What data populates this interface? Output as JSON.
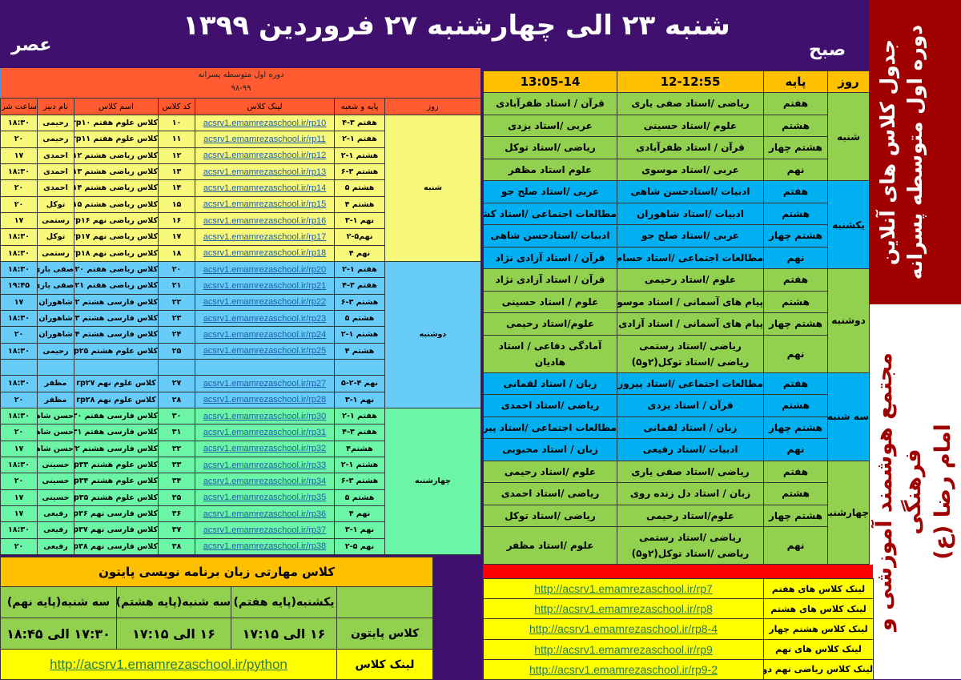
{
  "header": {
    "title": "شنبه ۲۳ الی چهارشنبه ۲۷ فروردین ۱۳۹۹",
    "afternoon": "عصر",
    "morning": "صبح"
  },
  "side": {
    "line1": "جدول کلاس های آنلاین",
    "line2": "دوره اول متوسطه پسرانه",
    "school1": "مجتمع هوشمند آموزشی و فرهنگی",
    "school2": "امام رضا (ع)"
  },
  "colors": {
    "purple": "#40106e",
    "dark_red": "#a00000",
    "orange_red": "#ff5a30",
    "green": "#92d050",
    "blue": "#00b0f0",
    "yellow": "#ffff00"
  },
  "evening": {
    "title": "دوره اول متوسطه پسرانه",
    "year": "۹۸-۹۹",
    "columns": [
      "روز",
      "پایه و شعبه",
      "لینک کلاس",
      "کد کلاس",
      "اسم کلاس",
      "نام دبیر",
      "ساعت شروع کلاس"
    ],
    "days": [
      {
        "day": "شنبه",
        "cls": "c-sat",
        "rows": [
          [
            "هفتم ۳-۴",
            "acsrv1.emamrezaschool.ir/rp10",
            "۱۰",
            "کلاس علوم هفتم rp۱۰",
            "رحیمی",
            "۱۸:۳۰"
          ],
          [
            "هفتم ۱-۲",
            "acsrv1.emamrezaschool.ir/rp11",
            "۱۱",
            "کلاس علوم هفتم rp۱۱",
            "رحیمی",
            "۲۰"
          ],
          [
            "هشتم ۱-۲",
            "acsrv1.emamrezaschool.ir/rp12",
            "۱۲",
            "کلاس ریاضی هشتم rp۱۲",
            "احمدی",
            "۱۷"
          ],
          [
            "هشتم ۳-۶",
            "acsrv1.emamrezaschool.ir/rp13",
            "۱۳",
            "کلاس ریاضی هشتم rp۱۳",
            "احمدی",
            "۱۸:۳۰"
          ],
          [
            "هشتم ۵",
            "acsrv1.emamrezaschool.ir/rp14",
            "۱۴",
            "کلاس ریاضی هشتم rp۱۴",
            "احمدی",
            "۲۰"
          ],
          [
            "هشتم ۴",
            "acsrv1.emamrezaschool.ir/rp15",
            "۱۵",
            "کلاس ریاضی هشتم rp۱۵",
            "توکل",
            "۲۰"
          ],
          [
            "نهم ۱-۳",
            "acsrv1.emamrezaschool.ir/rp16",
            "۱۶",
            "کلاس ریاضی نهم rp۱۶",
            "رستمی",
            "۱۷"
          ],
          [
            "نهم۵-۲",
            "acsrv1.emamrezaschool.ir/rp17",
            "۱۷",
            "کلاس ریاضی نهم rp۱۷",
            "توکل",
            "۱۸:۳۰"
          ],
          [
            "نهم ۴",
            "acsrv1.emamrezaschool.ir/rp18",
            "۱۸",
            "کلاس ریاضی نهم rp۱۸",
            "رستمی",
            "۱۸:۳۰"
          ]
        ]
      },
      {
        "day": "دوشنبه",
        "cls": "c-mon",
        "rows": [
          [
            "هفتم ۱-۲",
            "acsrv1.emamrezaschool.ir/rp20",
            "۲۰",
            "کلاس ریاضی هفتم rp۲۰",
            "صفی یاری",
            "۱۸:۳۰"
          ],
          [
            "هفتم ۳-۴",
            "acsrv1.emamrezaschool.ir/rp21",
            "۲۱",
            "کلاس ریاضی هفتم rp۲۱",
            "صفی یاری",
            "۱۹:۴۵"
          ],
          [
            "هشتم ۳-۶",
            "acsrv1.emamrezaschool.ir/rp22",
            "۲۲",
            "کلاس فارسی هشتم rp۲۲",
            "شاهوران",
            "۱۷"
          ],
          [
            "هشتم ۵",
            "acsrv1.emamrezaschool.ir/rp23",
            "۲۳",
            "کلاس فارسی هشتم rp۲۳",
            "شاهوران",
            "۱۸:۳۰"
          ],
          [
            "هشتم ۱-۲",
            "acsrv1.emamrezaschool.ir/rp24",
            "۲۴",
            "کلاس فارسی هشتم rp۲۴",
            "شاهوران",
            "۲۰"
          ],
          [
            "هشتم ۴",
            "acsrv1.emamrezaschool.ir/rp25",
            "۲۵",
            "کلاس علوم هشتم rp۲۵",
            "رحیمی",
            "۱۸:۳۰"
          ],
          [
            "",
            "",
            "",
            "",
            "",
            ""
          ],
          [
            "نهم ۴-۲-۵",
            "acsrv1.emamrezaschool.ir/rp27",
            "۲۷",
            "کلاس علوم نهم rp۲۷",
            "مظفر",
            "۱۸:۳۰"
          ],
          [
            "نهم ۱-۳",
            "acsrv1.emamrezaschool.ir/rp28",
            "۲۸",
            "کلاس علوم نهم rp۲۸",
            "مظفر",
            "۲۰"
          ]
        ]
      },
      {
        "day": "چهارشنبه",
        "cls": "c-wed",
        "rows": [
          [
            "هفتم ۱-۲",
            "acsrv1.emamrezaschool.ir/rp30",
            "۳۰",
            "کلاس فارسی هفتم rp۳۰",
            "حسن شاهی",
            "۱۸:۳۰"
          ],
          [
            "هفتم ۳-۴",
            "acsrv1.emamrezaschool.ir/rp31",
            "۳۱",
            "کلاس فارسی هفتم rp۳۱",
            "حسن شاهی",
            "۲۰"
          ],
          [
            "هشتم۴",
            "acsrv1.emamrezaschool.ir/rp32",
            "۳۲",
            "کلاس فارسی هشتم rp۳۲",
            "حسن شاهی",
            "۱۷"
          ],
          [
            "هشتم ۱-۲",
            "acsrv1.emamrezaschool.ir/rp33",
            "۳۳",
            "کلاس علوم هشتم rp۳۳",
            "حسینی",
            "۱۸:۳۰"
          ],
          [
            "هشتم ۳-۶",
            "acsrv1.emamrezaschool.ir/rp34",
            "۳۴",
            "کلاس علوم هشتم rp۳۴",
            "حسینی",
            "۲۰"
          ],
          [
            "هشتم ۵",
            "acsrv1.emamrezaschool.ir/rp35",
            "۳۵",
            "کلاس علوم هشتم rp۳۵",
            "حسینی",
            "۱۷"
          ],
          [
            "نهم ۴",
            "acsrv1.emamrezaschool.ir/rp36",
            "۳۶",
            "کلاس فارسی نهم rp۳۶",
            "رفیعی",
            "۱۷"
          ],
          [
            "نهم ۱-۳",
            "acsrv1.emamrezaschool.ir/rp37",
            "۳۷",
            "کلاس فارسی نهم rp۳۷",
            "رفیعی",
            "۱۸:۳۰"
          ],
          [
            "نهم ۵-۲",
            "acsrv1.emamrezaschool.ir/rp38",
            "۳۸",
            "کلاس فارسی نهم rp۳۸",
            "رفیعی",
            "۲۰"
          ]
        ]
      }
    ]
  },
  "morning": {
    "columns": [
      "روز",
      "پایه",
      "12-12:55",
      "13:05-14"
    ],
    "days": [
      {
        "day": "شنبه",
        "cls": "g",
        "rows": [
          [
            "هفتم",
            "ریاضی /استاد صفی یاری",
            "قرآن / استاد ظفرآبادی"
          ],
          [
            "هشتم",
            "علوم /استاد حسینی",
            "عربی /استاد یزدی"
          ],
          [
            "هشتم چهار",
            "قرآن / استاد ظفرآبادی",
            "ریاضی /استاد توکل"
          ],
          [
            "نهم",
            "عربی /استاد موسوی",
            "علوم استاد مظفر"
          ]
        ]
      },
      {
        "day": "یکشنبه",
        "cls": "b",
        "rows": [
          [
            "هفتم",
            "ادبیات /استادحسن شاهی",
            "عربی /استاد صلح جو"
          ],
          [
            "هشتم",
            "ادبیات /استاد شاهوران",
            "مطالعات اجتماعی /استاد کشاورز"
          ],
          [
            "هشتم چهار",
            "عربی /استاد صلح جو",
            "ادبیات /استادحسن شاهی"
          ],
          [
            "نهم",
            "مطالعات اجتماعی /استاد حسام پور",
            "قرآن / استاد آزادی نژاد"
          ]
        ]
      },
      {
        "day": "دوشنبه",
        "cls": "g",
        "rows": [
          [
            "هفتم",
            "علوم /استاد رحیمی",
            "قرآن / استاد آزادی نژاد"
          ],
          [
            "هشتم",
            "پیام های آسمانی / استاد موسوی",
            "علوم / استاد حسینی"
          ],
          [
            "هشتم چهار",
            "پیام های آسمانی / استاد آزادی نژاد",
            "علوم/استاد رحیمی"
          ],
          [
            "نهم",
            "ریاضی /استاد رستمی\nریاضی /استاد توکل(۲و۵)",
            "آمادگی دفاعی / استاد هادیان"
          ]
        ]
      },
      {
        "day": "سه شنبه",
        "cls": "b",
        "rows": [
          [
            "هفتم",
            "مطالعات اجتماعی /استاد پیروزان",
            "زبان / استاد لقمانی"
          ],
          [
            "هشتم",
            "قرآن / استاد یزدی",
            "ریاضی /استاد احمدی"
          ],
          [
            "هشتم چهار",
            "زبان / استاد لقمانی",
            "مطالعات اجتماعی /استاد پیروزان"
          ],
          [
            "نهم",
            "ادبیات /استاد رفیعی",
            "زبان / استاد محبوبی"
          ]
        ]
      },
      {
        "day": "چهارشنبه",
        "cls": "g",
        "rows": [
          [
            "هفتم",
            "ریاضی /استاد صفی یاری",
            "علوم /استاد رحیمی"
          ],
          [
            "هشتم",
            "زبان / استاد دل زنده روی",
            "ریاضی /استاد احمدی"
          ],
          [
            "هشتم چهار",
            "علوم/استاد رحیمی",
            "ریاضی /استاد توکل"
          ],
          [
            "نهم",
            "ریاضی /استاد رستمی\nریاضی /استاد توکل(۲و۵)",
            "علوم /استاد مظفر"
          ]
        ]
      }
    ]
  },
  "grade_links": [
    {
      "label": "لینک کلاس های هفتم",
      "url": "http://acsrv1.emamrezaschool.ir/rp7"
    },
    {
      "label": "لینک کلاس های هشتم",
      "url": "http://acsrv1.emamrezaschool.ir/rp8"
    },
    {
      "label": "لینک کلاس هشتم چهار",
      "url": "http://acsrv1.emamrezaschool.ir/rp8-4"
    },
    {
      "label": "لینک کلاس های نهم",
      "url": "http://acsrv1.emamrezaschool.ir/rp9"
    },
    {
      "label": "لینک کلاس ریاضی نهم دو و پنج",
      "url": "http://acsrv1.emamrezaschool.ir/rp9-2"
    }
  ],
  "python": {
    "title": "کلاس مهارتی زبان برنامه نویسی پایتون",
    "days": [
      "یکشنبه(پایه هفتم)",
      "سه شنبه(پایه هشتم)",
      "سه شنبه(پایه نهم)"
    ],
    "row_label": "کلاس پایتون",
    "times": [
      "۱۶ الی ۱۷:۱۵",
      "۱۶ الی ۱۷:۱۵",
      "۱۷:۳۰ الی ۱۸:۴۵"
    ],
    "link_label": "لینک کلاس",
    "url": "http://acsrv1.emamrezaschool.ir/python"
  }
}
